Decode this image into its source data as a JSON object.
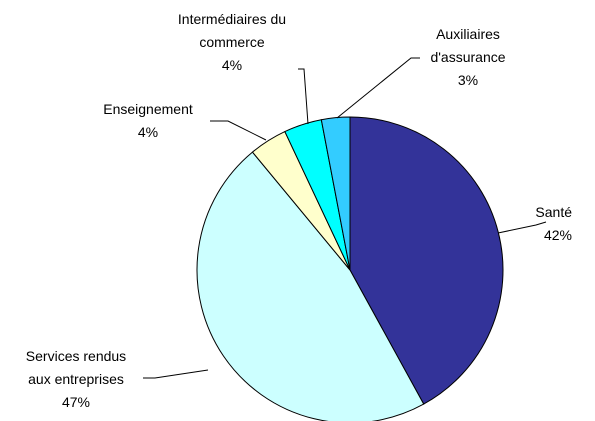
{
  "chart_data": {
    "type": "pie",
    "categories": [
      "Santé",
      "Services rendus\naux entreprises",
      "Enseignement",
      "Intermédiaires du\ncommerce",
      "Auxiliaires\nd'assurance"
    ],
    "values": [
      42,
      47,
      4,
      4,
      3
    ],
    "value_labels": [
      "42%",
      "47%",
      "4%",
      "4%",
      "3%"
    ],
    "colors": [
      "#333399",
      "#CCFFFF",
      "#FFFFCC",
      "#00FFFF",
      "#33CCFF"
    ]
  }
}
